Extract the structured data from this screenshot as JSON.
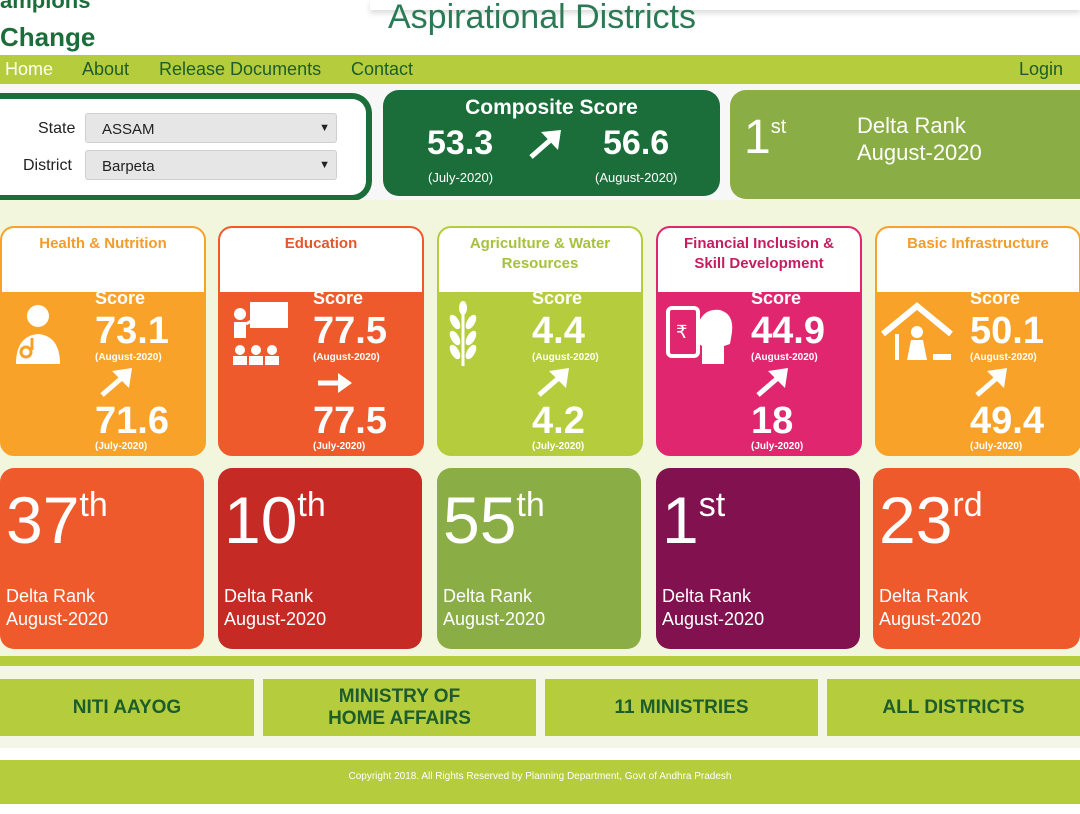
{
  "header": {
    "brand_top": "ampions",
    "brand": "Change",
    "title": "Aspirational Districts"
  },
  "nav": {
    "items": [
      "Home",
      "About",
      "Release Documents",
      "Contact"
    ],
    "login": "Login"
  },
  "filters": {
    "state_label": "State",
    "state_value": "ASSAM",
    "district_label": "District",
    "district_value": "Barpeta"
  },
  "composite": {
    "title": "Composite Score",
    "prev_value": "53.3",
    "prev_period": "(July-2020)",
    "curr_value": "56.6",
    "curr_period": "(August-2020)",
    "trend_icon": "arrow-up-right-icon"
  },
  "overall_rank": {
    "rank": "1",
    "suffix": "st",
    "line1": "Delta Rank",
    "line2": "August-2020"
  },
  "sectors": [
    {
      "title": "Health & Nutrition",
      "title2": "",
      "icon": "doctor-icon",
      "score_label": "Score",
      "curr": "73.1",
      "curr_period": "(August-2020)",
      "prev": "71.6",
      "prev_period": "(July-2020)",
      "trend": "up",
      "rank": "37",
      "suffix": "th",
      "rank_l1": "Delta Rank",
      "rank_l2": "August-2020",
      "color": "#f8a229",
      "title_color": "#f39c2a",
      "rank_color": "#ef5a2c"
    },
    {
      "title": "Education",
      "title2": "",
      "icon": "classroom-icon",
      "score_label": "Score",
      "curr": "77.5",
      "curr_period": "(August-2020)",
      "prev": "77.5",
      "prev_period": "(July-2020)",
      "trend": "flat",
      "rank": "10",
      "suffix": "th",
      "rank_l1": "Delta Rank",
      "rank_l2": "August-2020",
      "color": "#ef5a2c",
      "title_color": "#e4572e",
      "rank_color": "#c62a25"
    },
    {
      "title": "Agriculture & Water",
      "title2": "Resources",
      "icon": "wheat-icon",
      "score_label": "Score",
      "curr": "4.4",
      "curr_period": "(August-2020)",
      "prev": "4.2",
      "prev_period": "(July-2020)",
      "trend": "up",
      "rank": "55",
      "suffix": "th",
      "rank_l1": "Delta Rank",
      "rank_l2": "August-2020",
      "color": "#b5cc3c",
      "title_color": "#a6c13a",
      "rank_color": "#8aad45"
    },
    {
      "title": "Financial Inclusion &",
      "title2": "Skill Development",
      "icon": "finance-head-icon",
      "score_label": "Score",
      "curr": "44.9",
      "curr_period": "(August-2020)",
      "prev": "18",
      "prev_period": "(July-2020)",
      "trend": "up",
      "rank": "1",
      "suffix": "st",
      "rank_l1": "Delta Rank",
      "rank_l2": "August-2020",
      "color": "#e0266f",
      "title_color": "#c41d62",
      "rank_color": "#82124f"
    },
    {
      "title": "Basic Infrastructure",
      "title2": "",
      "icon": "house-icon",
      "score_label": "Score",
      "curr": "50.1",
      "curr_period": "(August-2020)",
      "prev": "49.4",
      "prev_period": "(July-2020)",
      "trend": "up",
      "rank": "23",
      "suffix": "rd",
      "rank_l1": "Delta Rank",
      "rank_l2": "August-2020",
      "color": "#f8a229",
      "title_color": "#f39c2a",
      "rank_color": "#ef5a2c"
    }
  ],
  "footer_links": [
    "NITI AAYOG",
    "MINISTRY OF",
    "HOME AFFAIRS",
    "11 MINISTRIES",
    "ALL DISTRICTS"
  ],
  "copyright": "Copyright 2018. All Rights Reserved by Planning Department, Govt of Andhra Pradesh"
}
